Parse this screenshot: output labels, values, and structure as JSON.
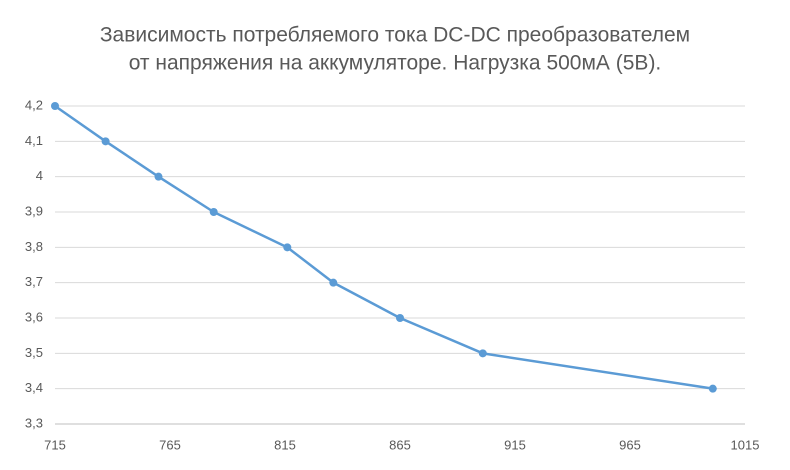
{
  "chart_data": {
    "type": "line",
    "title": [
      "Зависимость потребляемого тока DC-DC преобразователем",
      "от напряжения на аккумуляторе. Нагрузка 500мА (5В)."
    ],
    "x": [
      715,
      737,
      760,
      784,
      816,
      836,
      865,
      901,
      1001
    ],
    "series": [
      {
        "name": null,
        "color": "#5b9bd5",
        "values": [
          4.2,
          4.1,
          4,
          3.9,
          3.8,
          3.7,
          3.6,
          3.5,
          3.4
        ]
      }
    ],
    "xlim": [
      715,
      1015
    ],
    "xticks": [
      715,
      765,
      815,
      865,
      915,
      965,
      1015
    ],
    "ylim": [
      3.3,
      4.2
    ],
    "yticks": [
      {
        "value": 3.3,
        "label": "3,3"
      },
      {
        "value": 3.4,
        "label": "3,4"
      },
      {
        "value": 3.5,
        "label": "3,5"
      },
      {
        "value": 3.6,
        "label": "3,6"
      },
      {
        "value": 3.7,
        "label": "3,7"
      },
      {
        "value": 3.8,
        "label": "3,8"
      },
      {
        "value": 3.9,
        "label": "3,9"
      },
      4,
      {
        "value": 4.1,
        "label": "4,1"
      },
      {
        "value": 4.2,
        "label": "4,2"
      }
    ],
    "grid": true
  }
}
